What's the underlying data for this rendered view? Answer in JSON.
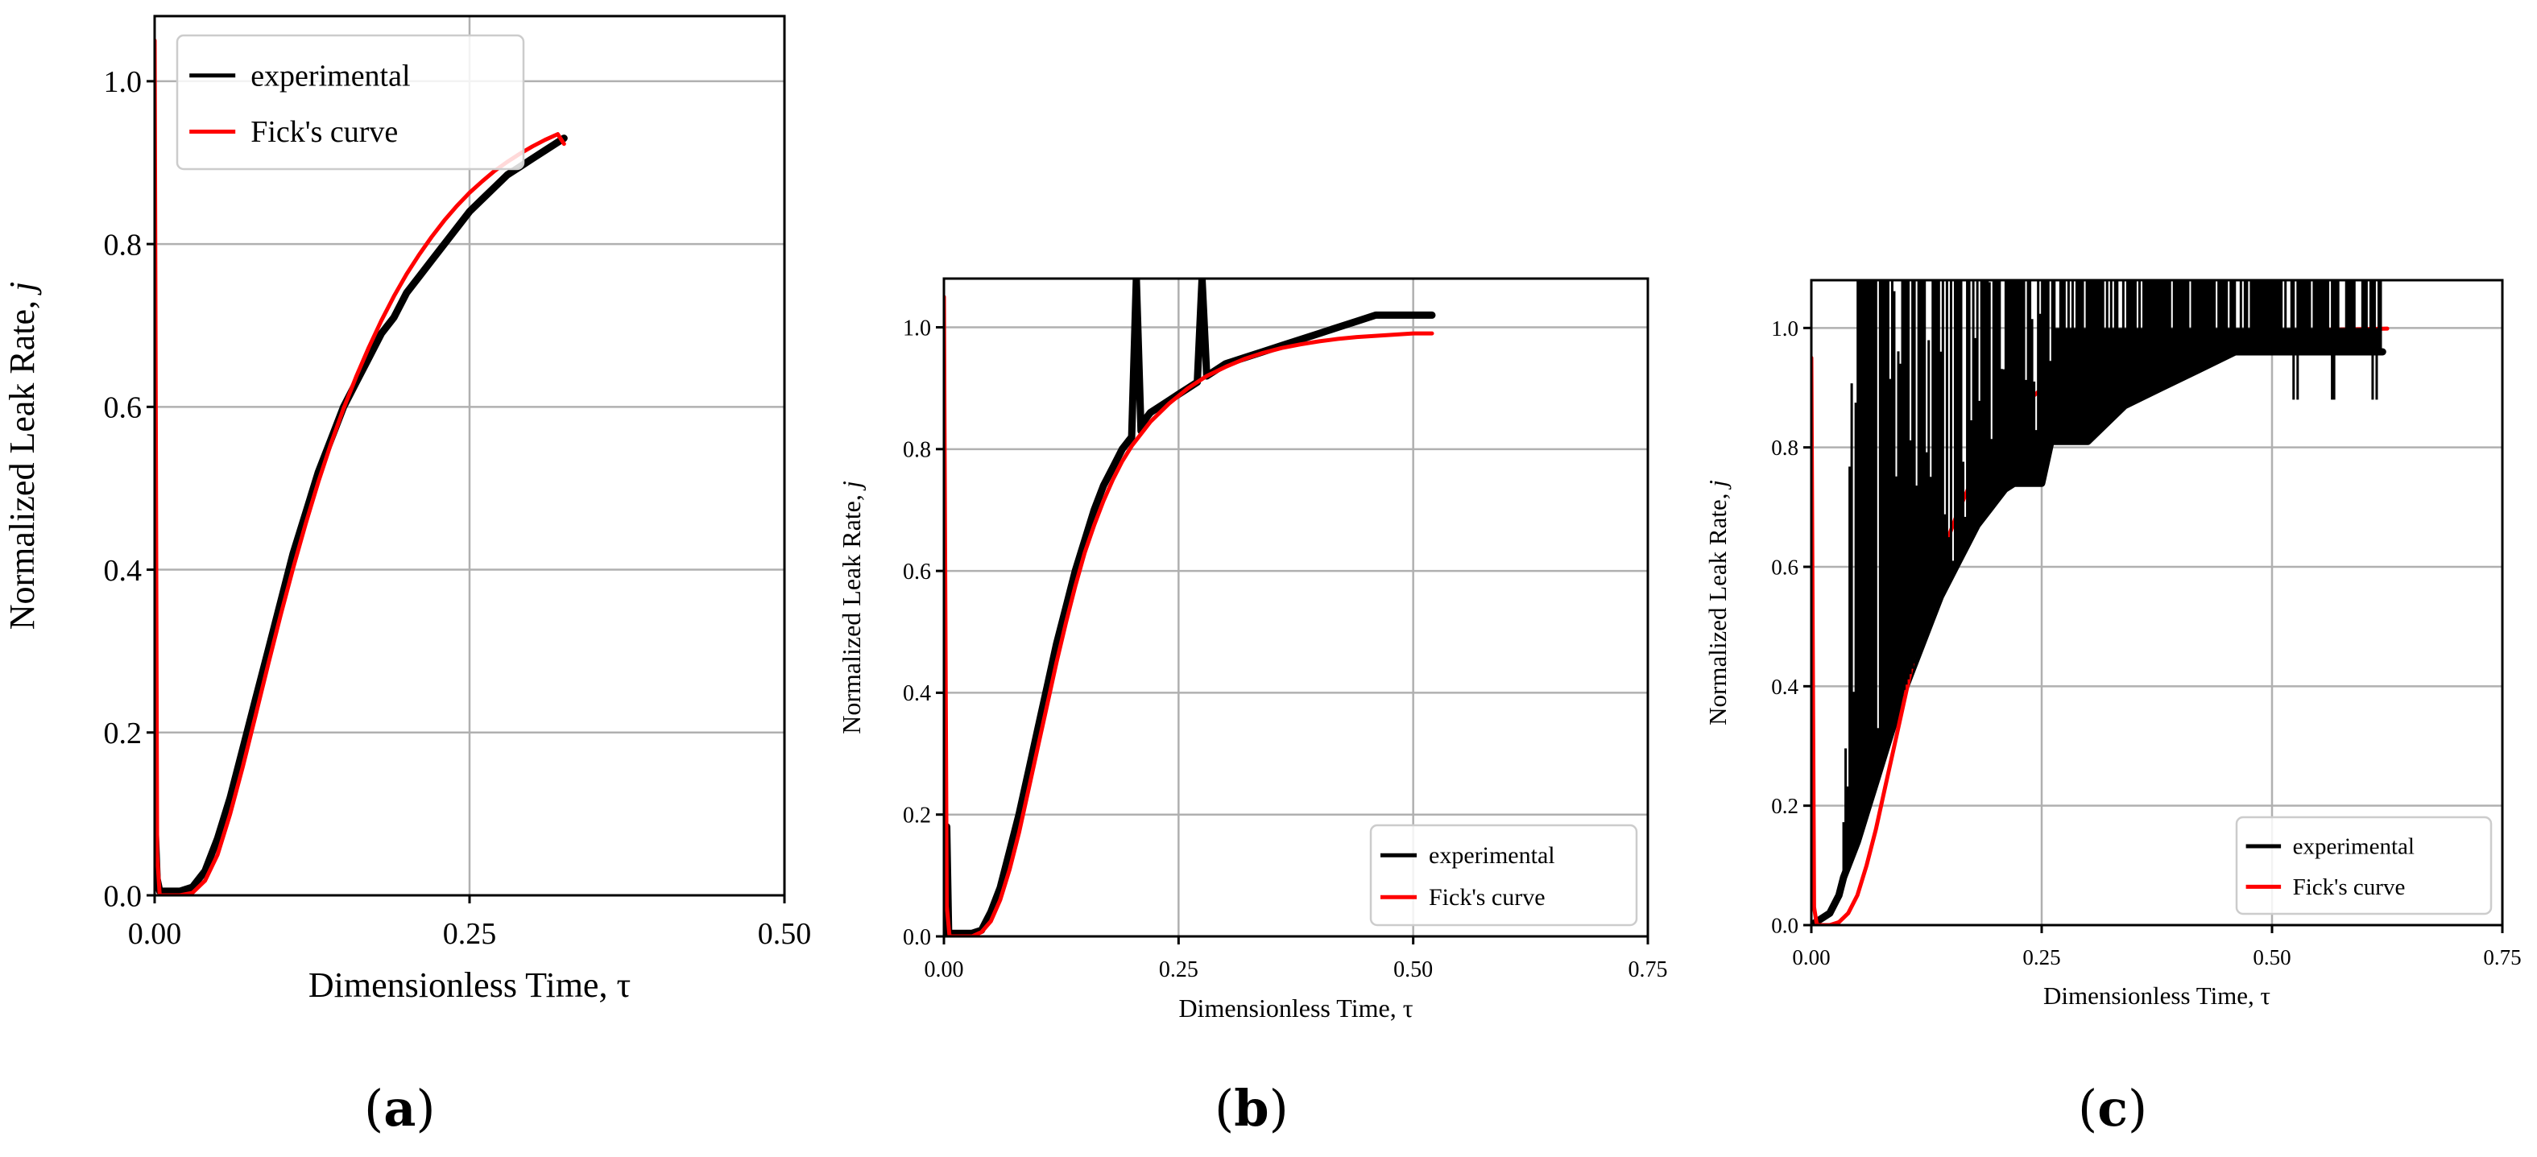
{
  "colors": {
    "experimental": "#000000",
    "fick": "#ff0000",
    "grid": "#b0b0b0",
    "axis": "#000000"
  },
  "captions": [
    "(a)",
    "(b)",
    "(c)"
  ],
  "caption_letters": [
    "a",
    "b",
    "c"
  ],
  "chart_data": [
    {
      "id": "a",
      "type": "line",
      "title": "",
      "xlabel": "Dimensionless Time, τ",
      "ylabel_main": "Normalized Leak Rate, ",
      "ylabel_var": "j",
      "xlim": [
        0.0,
        0.5
      ],
      "ylim": [
        0.0,
        1.08
      ],
      "xticks": [
        0.0,
        0.25,
        0.5
      ],
      "xtick_labels": [
        "0.00",
        "0.25",
        "0.50"
      ],
      "yticks": [
        0.0,
        0.2,
        0.4,
        0.6,
        0.8,
        1.0
      ],
      "ytick_labels": [
        "0.0",
        "0.2",
        "0.4",
        "0.6",
        "0.8",
        "1.0"
      ],
      "grid": true,
      "legend_position": "upper-left",
      "series": [
        {
          "name": "experimental",
          "color": "#000000",
          "x": [
            0.0,
            0.002,
            0.004,
            0.02,
            0.03,
            0.04,
            0.05,
            0.06,
            0.07,
            0.08,
            0.09,
            0.1,
            0.11,
            0.12,
            0.13,
            0.14,
            0.15,
            0.16,
            0.17,
            0.18,
            0.19,
            0.2,
            0.21,
            0.22,
            0.23,
            0.24,
            0.25,
            0.26,
            0.27,
            0.28,
            0.29,
            0.3,
            0.31,
            0.32,
            0.325
          ],
          "y": [
            0.1,
            0.02,
            0.005,
            0.005,
            0.01,
            0.03,
            0.07,
            0.12,
            0.18,
            0.24,
            0.3,
            0.36,
            0.42,
            0.47,
            0.52,
            0.56,
            0.6,
            0.63,
            0.66,
            0.69,
            0.71,
            0.74,
            0.76,
            0.78,
            0.8,
            0.82,
            0.84,
            0.855,
            0.87,
            0.885,
            0.895,
            0.905,
            0.915,
            0.925,
            0.93
          ]
        },
        {
          "name": "Fick's curve",
          "color": "#ff0000",
          "x": [
            0.0,
            0.002,
            0.004,
            0.02,
            0.03,
            0.04,
            0.05,
            0.06,
            0.07,
            0.08,
            0.09,
            0.1,
            0.11,
            0.12,
            0.13,
            0.14,
            0.15,
            0.16,
            0.17,
            0.18,
            0.19,
            0.2,
            0.21,
            0.22,
            0.23,
            0.24,
            0.25,
            0.26,
            0.27,
            0.28,
            0.29,
            0.3,
            0.31,
            0.32,
            0.325
          ],
          "y": [
            1.05,
            0.05,
            0.0,
            0.0,
            0.003,
            0.018,
            0.05,
            0.1,
            0.158,
            0.22,
            0.283,
            0.344,
            0.402,
            0.457,
            0.508,
            0.555,
            0.598,
            0.637,
            0.673,
            0.706,
            0.736,
            0.763,
            0.787,
            0.809,
            0.829,
            0.847,
            0.863,
            0.877,
            0.89,
            0.901,
            0.911,
            0.92,
            0.928,
            0.935,
            0.923
          ]
        }
      ]
    },
    {
      "id": "b",
      "type": "line",
      "title": "",
      "xlabel": "Dimensionless Time, τ",
      "ylabel_main": "Normalized Leak Rate, ",
      "ylabel_var": "j",
      "xlim": [
        0.0,
        0.75
      ],
      "ylim": [
        0.0,
        1.08
      ],
      "xticks": [
        0.0,
        0.25,
        0.5,
        0.75
      ],
      "xtick_labels": [
        "0.00",
        "0.25",
        "0.50",
        "0.75"
      ],
      "yticks": [
        0.0,
        0.2,
        0.4,
        0.6,
        0.8,
        1.0
      ],
      "ytick_labels": [
        "0.0",
        "0.2",
        "0.4",
        "0.6",
        "0.8",
        "1.0"
      ],
      "grid": true,
      "legend_position": "lower-right",
      "series": [
        {
          "name": "experimental",
          "color": "#000000",
          "x": [
            0.0,
            0.003,
            0.005,
            0.006,
            0.01,
            0.03,
            0.04,
            0.05,
            0.06,
            0.07,
            0.08,
            0.09,
            0.1,
            0.11,
            0.12,
            0.13,
            0.14,
            0.15,
            0.16,
            0.17,
            0.18,
            0.19,
            0.2,
            0.205,
            0.21,
            0.215,
            0.22,
            0.23,
            0.24,
            0.25,
            0.26,
            0.27,
            0.275,
            0.28,
            0.29,
            0.3,
            0.32,
            0.34,
            0.36,
            0.38,
            0.4,
            0.42,
            0.44,
            0.46,
            0.48,
            0.5,
            0.52
          ],
          "y": [
            0.0,
            0.18,
            0.01,
            0.005,
            0.005,
            0.005,
            0.01,
            0.04,
            0.08,
            0.14,
            0.2,
            0.27,
            0.34,
            0.41,
            0.48,
            0.54,
            0.6,
            0.65,
            0.7,
            0.74,
            0.77,
            0.8,
            0.82,
            1.08,
            0.83,
            0.85,
            0.86,
            0.87,
            0.88,
            0.89,
            0.9,
            0.91,
            1.08,
            0.92,
            0.93,
            0.94,
            0.95,
            0.96,
            0.97,
            0.98,
            0.99,
            1.0,
            1.01,
            1.02,
            1.02,
            1.02,
            1.02
          ]
        },
        {
          "name": "Fick's curve",
          "color": "#ff0000",
          "x": [
            0.0,
            0.003,
            0.006,
            0.03,
            0.04,
            0.05,
            0.06,
            0.07,
            0.08,
            0.09,
            0.1,
            0.11,
            0.12,
            0.13,
            0.14,
            0.15,
            0.16,
            0.17,
            0.18,
            0.19,
            0.2,
            0.22,
            0.24,
            0.26,
            0.28,
            0.3,
            0.32,
            0.34,
            0.36,
            0.38,
            0.4,
            0.42,
            0.44,
            0.46,
            0.48,
            0.5,
            0.52
          ],
          "y": [
            1.05,
            0.05,
            0.0,
            0.0,
            0.007,
            0.025,
            0.06,
            0.11,
            0.17,
            0.24,
            0.31,
            0.38,
            0.45,
            0.515,
            0.575,
            0.63,
            0.675,
            0.715,
            0.75,
            0.78,
            0.805,
            0.845,
            0.875,
            0.9,
            0.92,
            0.935,
            0.948,
            0.958,
            0.966,
            0.972,
            0.977,
            0.981,
            0.984,
            0.986,
            0.988,
            0.99,
            0.99
          ]
        }
      ]
    },
    {
      "id": "c",
      "type": "line",
      "title": "",
      "xlabel": "Dimensionless Time, τ",
      "ylabel_main": "Normalized Leak Rate, ",
      "ylabel_var": "j",
      "xlim": [
        0.0,
        0.75
      ],
      "ylim": [
        0.0,
        1.08
      ],
      "xticks": [
        0.0,
        0.25,
        0.5,
        0.75
      ],
      "xtick_labels": [
        "0.00",
        "0.25",
        "0.50",
        "0.75"
      ],
      "yticks": [
        0.0,
        0.2,
        0.4,
        0.6,
        0.8,
        1.0
      ],
      "ytick_labels": [
        "0.0",
        "0.2",
        "0.4",
        "0.6",
        "0.8",
        "1.0"
      ],
      "grid": true,
      "legend_position": "lower-right",
      "series": [
        {
          "name": "experimental",
          "color": "#000000",
          "x": [
            0.0,
            0.01,
            0.02,
            0.03,
            0.035,
            0.04,
            0.05,
            0.06,
            0.07,
            0.08,
            0.09,
            0.1,
            0.11,
            0.12,
            0.13,
            0.14,
            0.15,
            0.16,
            0.17,
            0.18,
            0.19,
            0.2,
            0.21,
            0.22,
            0.23,
            0.24,
            0.25,
            0.26,
            0.3,
            0.34,
            0.38,
            0.42,
            0.46,
            0.5,
            0.54,
            0.58,
            0.62
          ],
          "y": [
            0.0,
            0.01,
            0.02,
            0.05,
            0.08,
            0.1,
            0.14,
            0.19,
            0.24,
            0.29,
            0.34,
            0.39,
            0.43,
            0.47,
            0.51,
            0.55,
            0.58,
            0.61,
            0.64,
            0.67,
            0.69,
            0.71,
            0.73,
            0.74,
            0.74,
            0.74,
            0.74,
            0.81,
            0.81,
            0.87,
            0.9,
            0.93,
            0.96,
            0.96,
            0.96,
            0.96,
            0.96
          ]
        },
        {
          "name": "Fick's curve",
          "color": "#ff0000",
          "x": [
            0.0,
            0.003,
            0.006,
            0.02,
            0.03,
            0.04,
            0.05,
            0.06,
            0.07,
            0.08,
            0.09,
            0.1,
            0.11,
            0.12,
            0.13,
            0.14,
            0.15,
            0.16,
            0.17,
            0.18,
            0.19,
            0.2,
            0.22,
            0.24,
            0.26,
            0.28,
            0.3,
            0.32,
            0.34,
            0.36,
            0.38,
            0.4,
            0.44,
            0.48,
            0.52,
            0.56,
            0.6,
            0.625
          ],
          "y": [
            0.95,
            0.03,
            0.0,
            0.0,
            0.005,
            0.02,
            0.05,
            0.1,
            0.16,
            0.23,
            0.3,
            0.37,
            0.44,
            0.5,
            0.56,
            0.61,
            0.655,
            0.695,
            0.73,
            0.76,
            0.79,
            0.815,
            0.855,
            0.885,
            0.91,
            0.928,
            0.943,
            0.955,
            0.964,
            0.971,
            0.977,
            0.982,
            0.988,
            0.992,
            0.995,
            0.997,
            0.998,
            0.999
          ]
        }
      ]
    }
  ]
}
